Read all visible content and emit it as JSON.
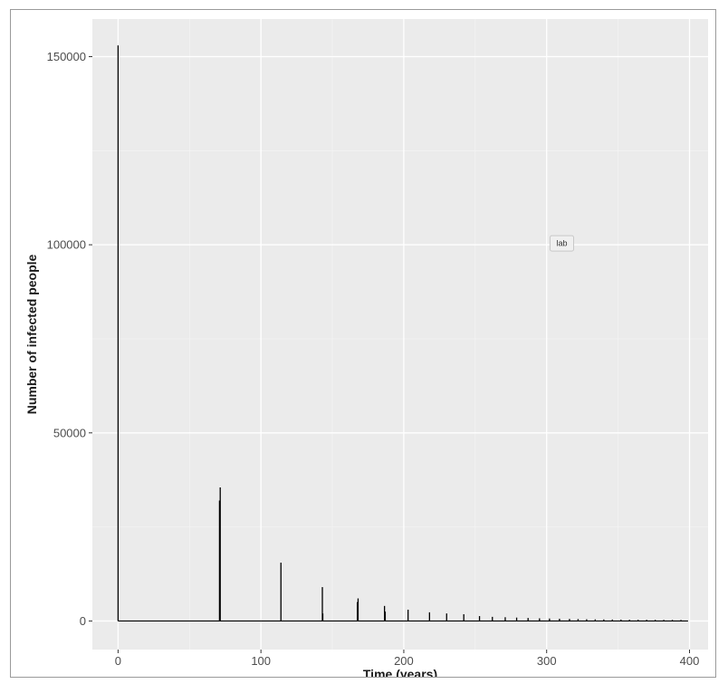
{
  "chart_data": {
    "type": "line",
    "title": "",
    "xlabel": "Time (years)",
    "ylabel": "Number of infected people",
    "xlim": [
      -18,
      413
    ],
    "ylim": [
      -7600,
      160000
    ],
    "x_ticks": [
      0,
      100,
      200,
      300,
      400
    ],
    "x_tick_labels": [
      "0",
      "100",
      "200",
      "300",
      "400"
    ],
    "y_ticks": [
      0,
      50000,
      100000,
      150000
    ],
    "y_tick_labels": [
      "0",
      "50000",
      "100000",
      "150000"
    ],
    "grid": true,
    "baseline": 0,
    "x_end": 399,
    "series": [
      {
        "x": [
          0,
          71,
          71.5,
          114,
          143,
          143.3,
          167.5,
          168,
          186.5,
          187,
          203,
          218,
          230,
          242,
          253,
          262,
          271,
          279,
          287,
          295,
          302,
          309,
          316,
          322,
          328,
          334,
          340,
          346,
          352,
          358,
          364,
          370,
          376,
          382,
          388,
          394
        ],
        "values": [
          153000,
          32000,
          35500,
          15500,
          9000,
          2000,
          5000,
          6000,
          4000,
          2500,
          3000,
          2300,
          2000,
          1800,
          1300,
          1100,
          1000,
          900,
          800,
          700,
          650,
          600,
          550,
          500,
          450,
          420,
          400,
          380,
          360,
          340,
          320,
          300,
          290,
          280,
          270,
          260
        ]
      }
    ],
    "annotations": [
      {
        "label": "lab",
        "x": 310,
        "y": 100500
      }
    ]
  }
}
